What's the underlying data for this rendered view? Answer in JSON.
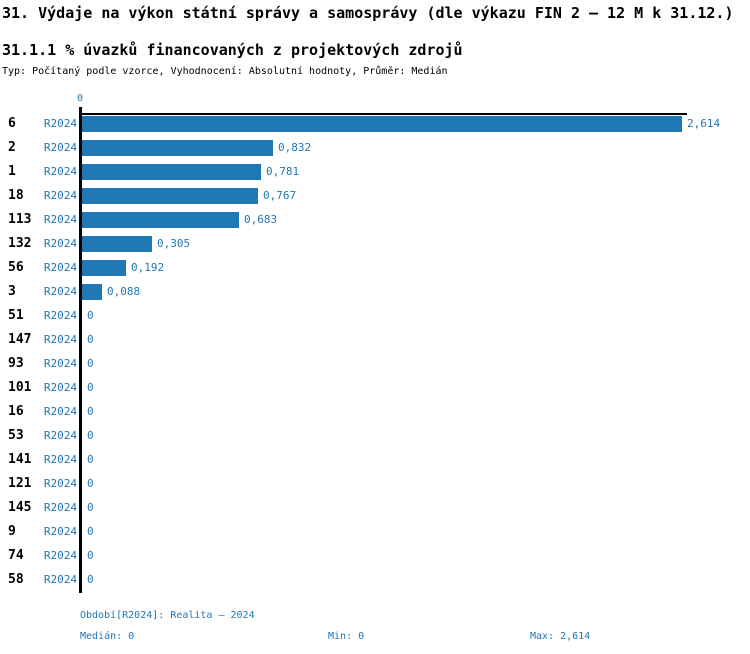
{
  "colors": {
    "accent": "#1f77b4",
    "axis": "#000000",
    "background": "#ffffff"
  },
  "header": {
    "title": "31. Výdaje na výkon státní správy a samosprávy (dle výkazu FIN 2 – 12 M k 31.12.)",
    "subtitle": "31.1.1 % úvazků financovaných z projektových zdrojů",
    "meta": "Typ: Počítaný podle vzorce, Vyhodnocení: Absolutní hodnoty, Průměr: Medián"
  },
  "chart_data": {
    "type": "bar",
    "orientation": "horizontal",
    "title": "31.1.1 % úvazků financovaných z projektových zdrojů",
    "series_label": "R2024",
    "categories": [
      "6",
      "2",
      "1",
      "18",
      "113",
      "132",
      "56",
      "3",
      "51",
      "147",
      "93",
      "101",
      "16",
      "53",
      "141",
      "121",
      "145",
      "9",
      "74",
      "58"
    ],
    "values": [
      2.614,
      0.832,
      0.781,
      0.767,
      0.683,
      0.305,
      0.192,
      0.088,
      0,
      0,
      0,
      0,
      0,
      0,
      0,
      0,
      0,
      0,
      0,
      0
    ],
    "value_labels": [
      "2,614",
      "0,832",
      "0,781",
      "0,767",
      "0,683",
      "0,305",
      "0,192",
      "0,088",
      "0",
      "0",
      "0",
      "0",
      "0",
      "0",
      "0",
      "0",
      "0",
      "0",
      "0",
      "0"
    ],
    "x_axis": {
      "position": "top",
      "tick_labels": [
        "0"
      ],
      "range": [
        0,
        2.614
      ],
      "grid": false
    },
    "stats": {
      "median": 0,
      "min": 0,
      "max": 2.614
    }
  },
  "axis": {
    "zero_tick_label": "0"
  },
  "footer": {
    "period": "Období[R2024]: Realita – 2024",
    "median": "Medián: 0",
    "min": "Min: 0",
    "max": "Max: 2,614"
  }
}
